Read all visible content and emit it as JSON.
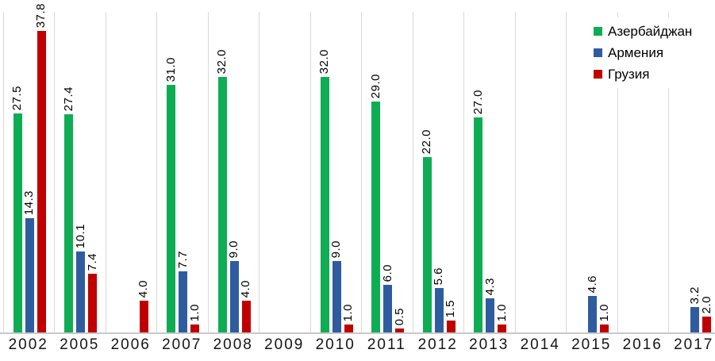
{
  "chart_data": {
    "type": "bar",
    "title": "",
    "xlabel": "",
    "ylabel": "",
    "categories": [
      "2002",
      "2005",
      "2006",
      "2007",
      "2008",
      "2009",
      "2010",
      "2011",
      "2012",
      "2013",
      "2014",
      "2015",
      "2016",
      "2017"
    ],
    "series": [
      {
        "name": "Азербайджан",
        "color": "#0fad53",
        "values": [
          27.5,
          27.4,
          null,
          31.0,
          32.0,
          null,
          32.0,
          29.0,
          22.0,
          27.0,
          null,
          null,
          null,
          null
        ]
      },
      {
        "name": "Армения",
        "color": "#2e5c9e",
        "values": [
          14.3,
          10.1,
          null,
          7.7,
          9.0,
          null,
          9.0,
          6.0,
          5.6,
          4.3,
          null,
          4.6,
          null,
          3.2
        ]
      },
      {
        "name": "Грузия",
        "color": "#c00000",
        "values": [
          37.8,
          7.4,
          4.0,
          1.0,
          4.0,
          null,
          1.0,
          0.5,
          1.5,
          1.0,
          null,
          1.0,
          null,
          2.0
        ]
      }
    ],
    "value_labels": "shown, one decimal, rotated 90deg",
    "ylim": [
      0,
      40
    ],
    "grid": "vertical-category-separators",
    "legend_position": "top-right",
    "colors": {
      "gridline": "#d9d9d9",
      "axis_line": "#c9c9c9",
      "value_label": "#000000",
      "axis_label": "#151515",
      "background": "#ffffff"
    }
  }
}
